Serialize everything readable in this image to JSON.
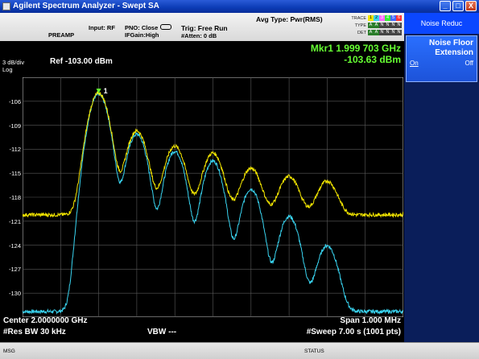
{
  "window": {
    "title": "Agilent Spectrum Analyzer - Swept SA",
    "buttons": {
      "minimize": "_",
      "maximize": "□",
      "close": "X"
    }
  },
  "header": {
    "preamp": "PREAMP",
    "input": "Input: RF",
    "pno": "PNO: Close",
    "ifgain": "IFGain:High",
    "trig": "Trig: Free Run",
    "atten": "#Atten: 0 dB",
    "avg_type": "Avg Type: Pwr(RMS)",
    "trace_label": "TRACE",
    "type_label": "TYPE",
    "det_label": "DET",
    "trace_cells": [
      "1",
      "2",
      "3",
      "4",
      "5",
      "6"
    ],
    "type_cells": [
      "A",
      "A",
      "N",
      "N",
      "N",
      "N"
    ],
    "det_cells": [
      "A",
      "A",
      "N",
      "N",
      "N",
      "N"
    ],
    "trace_colors": [
      "#f2e500",
      "#39d4f0",
      "#ff66ff",
      "#33ee33",
      "#4466ff",
      "#ff3333"
    ]
  },
  "scale": {
    "per_div": "3 dB/div",
    "log": "Log",
    "ref": "Ref -103.00 dBm",
    "marker_freq": "Mkr1 1.999 703 GHz",
    "marker_amp": "-103.63 dBm",
    "marker_label": "1",
    "y_ticks": [
      "-106",
      "-109",
      "-112",
      "-115",
      "-118",
      "-121",
      "-124",
      "-127",
      "-130"
    ]
  },
  "footer": {
    "center": "Center 2.0000000 GHz",
    "res_bw": "#Res BW 30 kHz",
    "vbw": "VBW ---",
    "span": "Span 1.000 MHz",
    "sweep": "#Sweep  7.00 s (1001 pts)"
  },
  "softkeys": {
    "menu_title": "Noise Reduc",
    "noise_floor_line1": "Noise Floor",
    "noise_floor_line2": "Extension",
    "on": "On",
    "off": "Off"
  },
  "statusbar": {
    "msg": "MSG",
    "status": "STATUS"
  },
  "chart_data": {
    "type": "line",
    "title": "",
    "xlabel": "",
    "ylabel": "",
    "x_units": "GHz",
    "y_units": "dBm",
    "x_range": [
      1.9995,
      2.0005
    ],
    "ylim": [
      -130,
      -103
    ],
    "series": [
      {
        "name": "1",
        "color": "#f2e500",
        "peaks_x": [
          1.9997,
          1.9998,
          1.9999,
          2.0,
          2.0001,
          2.0002,
          2.0003
        ],
        "peaks_y": [
          -103.6,
          -108.5,
          -110.6,
          -111.6,
          -114.0,
          -115.4,
          -116.3
        ],
        "noise_floor": -118.3
      },
      {
        "name": "2",
        "color": "#39d4f0",
        "peaks_x": [
          1.9997,
          1.9998,
          1.9999,
          2.0,
          2.0001,
          2.0002,
          2.0003
        ],
        "peaks_y": [
          -103.6,
          -108.5,
          -110.6,
          -111.8,
          -115.3,
          -118.8,
          -122.8
        ],
        "noise_floor": -130.1
      }
    ]
  }
}
